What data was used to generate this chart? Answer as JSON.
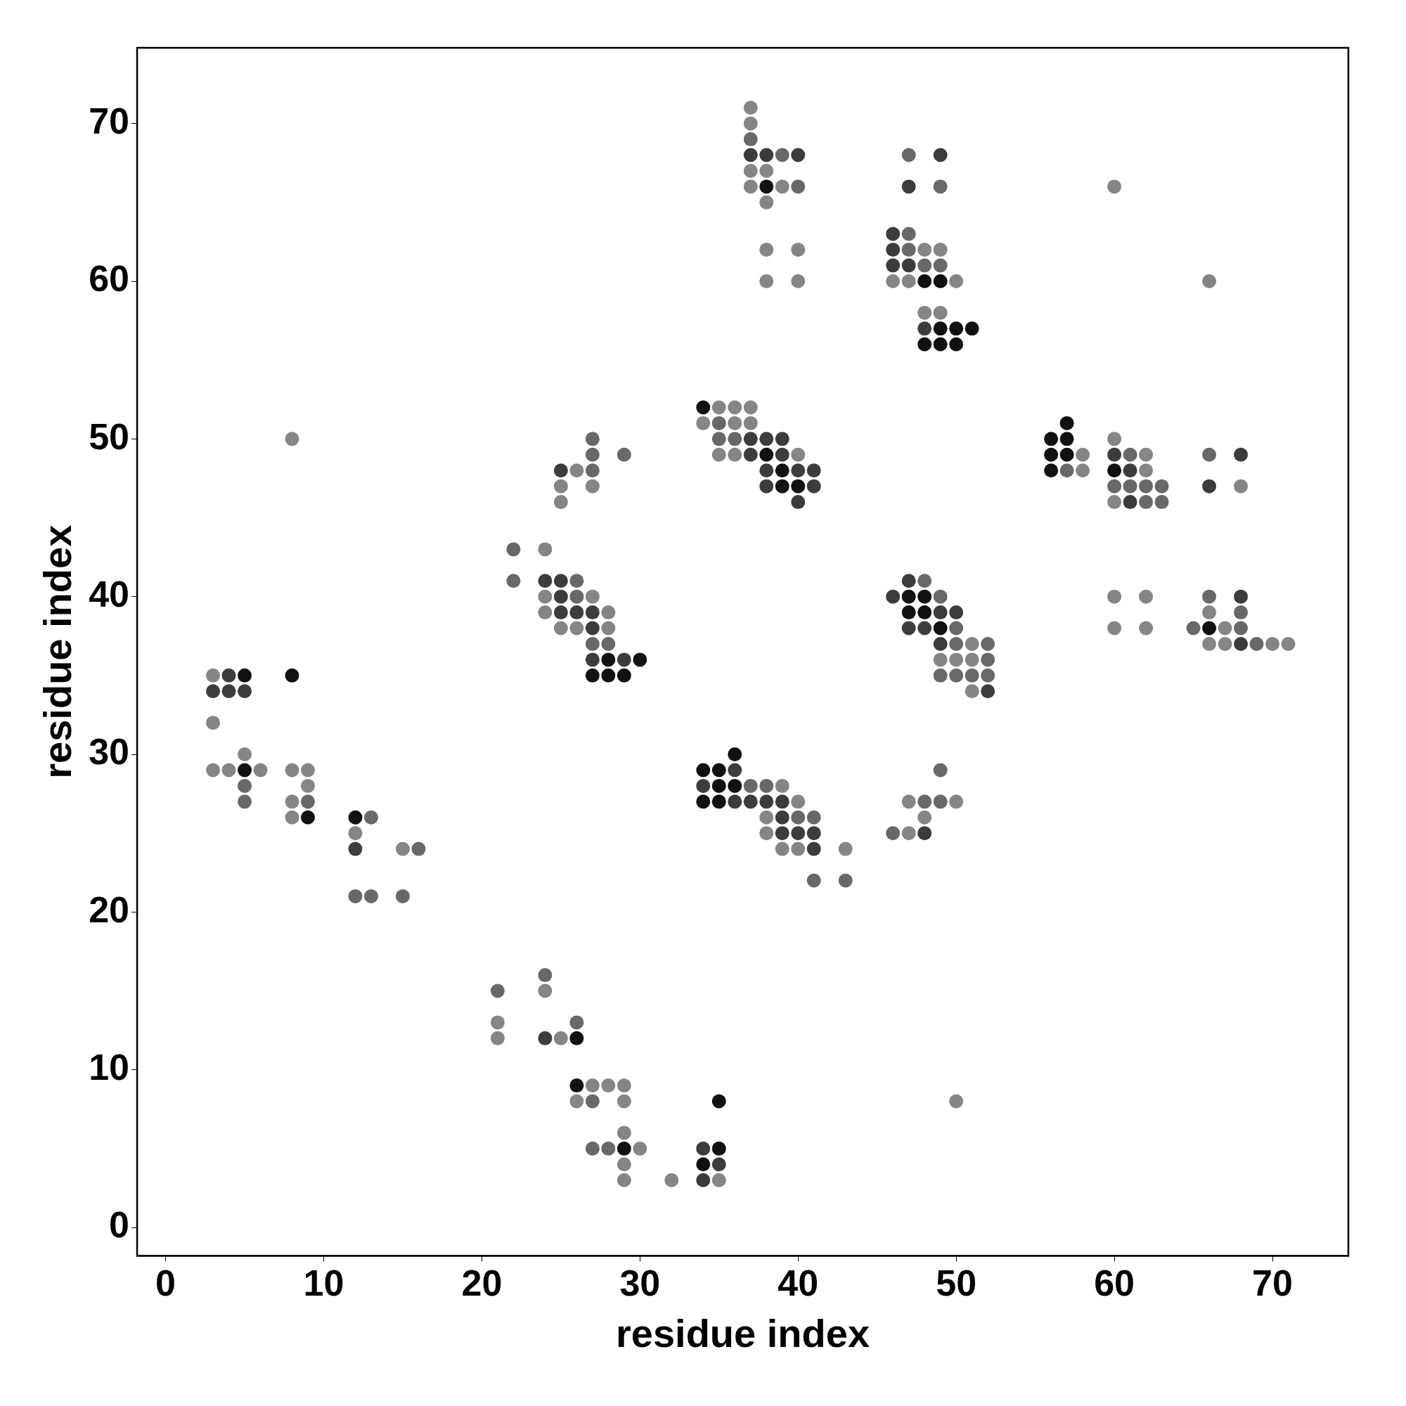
{
  "chart_data": {
    "type": "scatter",
    "xlabel": "residue index",
    "ylabel": "residue index",
    "xlim": [
      -1.8,
      74.8
    ],
    "ylim": [
      -1.8,
      74.8
    ],
    "xticks": [
      0,
      10,
      20,
      30,
      40,
      50,
      60,
      70
    ],
    "yticks": [
      0,
      10,
      20,
      30,
      40,
      50,
      60,
      70
    ],
    "marker": "circle",
    "series": [
      {
        "color": "#858585",
        "x": [
          3,
          3,
          3,
          4,
          5,
          6,
          8,
          8,
          8,
          8,
          9,
          9,
          12,
          15,
          21,
          21,
          24,
          24,
          24,
          24,
          25,
          25,
          25,
          25,
          26,
          26,
          26,
          27,
          27,
          27,
          28,
          28,
          28,
          29,
          29,
          29,
          29,
          29,
          30,
          32,
          34,
          35,
          35,
          35,
          36,
          36,
          36,
          37,
          37,
          37,
          37,
          37,
          37,
          38,
          38,
          38,
          38,
          38,
          38,
          39,
          39,
          39,
          40,
          40,
          40,
          40,
          40,
          43,
          46,
          47,
          47,
          47,
          48,
          48,
          48,
          49,
          49,
          49,
          50,
          50,
          50,
          50,
          51,
          51,
          51,
          58,
          58,
          60,
          60,
          60,
          60,
          60,
          62,
          62,
          62,
          62,
          66,
          66,
          66,
          67,
          67,
          68,
          70,
          71
        ],
        "values": [
          35,
          32,
          29,
          29,
          30,
          29,
          50,
          29,
          27,
          26,
          29,
          28,
          25,
          24,
          13,
          12,
          43,
          40,
          39,
          15,
          47,
          46,
          38,
          12,
          48,
          38,
          8,
          47,
          40,
          9,
          39,
          38,
          9,
          9,
          8,
          6,
          4,
          3,
          5,
          3,
          51,
          52,
          49,
          3,
          52,
          51,
          49,
          71,
          70,
          67,
          66,
          52,
          51,
          67,
          65,
          62,
          60,
          26,
          25,
          66,
          28,
          24,
          62,
          60,
          49,
          27,
          24,
          24,
          60,
          60,
          27,
          25,
          62,
          58,
          26,
          62,
          58,
          36,
          60,
          36,
          27,
          8,
          37,
          36,
          34,
          49,
          48,
          66,
          50,
          46,
          40,
          38,
          49,
          48,
          40,
          38,
          60,
          39,
          37,
          38,
          37,
          47,
          37,
          37
        ]
      },
      {
        "color": "#686868",
        "x": [
          5,
          5,
          9,
          12,
          13,
          13,
          15,
          16,
          21,
          22,
          22,
          24,
          26,
          26,
          26,
          27,
          27,
          27,
          27,
          27,
          27,
          28,
          28,
          29,
          35,
          35,
          36,
          37,
          37,
          38,
          39,
          40,
          40,
          41,
          41,
          43,
          46,
          47,
          47,
          47,
          48,
          48,
          48,
          49,
          49,
          49,
          49,
          49,
          49,
          50,
          50,
          50,
          51,
          52,
          52,
          52,
          57,
          60,
          61,
          61,
          62,
          62,
          63,
          63,
          65,
          66,
          66,
          68,
          68,
          69
        ],
        "values": [
          28,
          27,
          27,
          21,
          26,
          21,
          21,
          24,
          15,
          43,
          41,
          16,
          41,
          40,
          13,
          50,
          49,
          48,
          37,
          8,
          5,
          37,
          5,
          49,
          51,
          50,
          50,
          69,
          28,
          28,
          68,
          66,
          26,
          26,
          22,
          22,
          25,
          68,
          63,
          62,
          61,
          41,
          27,
          66,
          61,
          40,
          35,
          29,
          27,
          38,
          37,
          35,
          35,
          37,
          36,
          35,
          48,
          47,
          49,
          47,
          47,
          46,
          47,
          46,
          38,
          49,
          40,
          39,
          38,
          37
        ]
      },
      {
        "color": "#3c3c3c",
        "x": [
          3,
          4,
          4,
          5,
          12,
          24,
          24,
          25,
          25,
          25,
          25,
          26,
          27,
          27,
          27,
          29,
          34,
          34,
          34,
          35,
          36,
          36,
          37,
          37,
          37,
          37,
          38,
          38,
          38,
          38,
          38,
          39,
          39,
          39,
          39,
          39,
          40,
          40,
          40,
          40,
          41,
          41,
          41,
          41,
          46,
          46,
          46,
          46,
          47,
          47,
          47,
          47,
          48,
          48,
          48,
          49,
          49,
          49,
          50,
          52,
          60,
          61,
          61,
          66,
          68,
          68,
          68
        ],
        "values": [
          34,
          35,
          34,
          34,
          24,
          41,
          12,
          48,
          41,
          40,
          39,
          39,
          39,
          38,
          36,
          36,
          28,
          5,
          3,
          4,
          29,
          27,
          68,
          50,
          49,
          27,
          68,
          50,
          48,
          47,
          27,
          50,
          49,
          27,
          26,
          25,
          68,
          48,
          46,
          25,
          48,
          47,
          25,
          24,
          63,
          62,
          61,
          40,
          66,
          61,
          41,
          38,
          57,
          38,
          25,
          68,
          39,
          37,
          39,
          34,
          49,
          48,
          46,
          47,
          49,
          40,
          37
        ]
      },
      {
        "color": "#111111",
        "x": [
          5,
          5,
          8,
          9,
          12,
          26,
          26,
          27,
          28,
          28,
          29,
          29,
          30,
          34,
          34,
          34,
          34,
          35,
          35,
          35,
          35,
          35,
          36,
          36,
          38,
          38,
          39,
          39,
          40,
          47,
          47,
          48,
          48,
          48,
          48,
          49,
          49,
          49,
          49,
          50,
          50,
          51,
          56,
          56,
          56,
          57,
          57,
          57,
          60,
          66
        ],
        "values": [
          35,
          29,
          35,
          26,
          26,
          12,
          9,
          35,
          36,
          35,
          35,
          5,
          36,
          52,
          29,
          27,
          4,
          29,
          28,
          27,
          8,
          5,
          30,
          28,
          66,
          49,
          48,
          47,
          47,
          40,
          39,
          60,
          56,
          40,
          39,
          60,
          57,
          56,
          38,
          57,
          56,
          57,
          50,
          49,
          48,
          51,
          50,
          49,
          48,
          38
        ]
      }
    ]
  }
}
